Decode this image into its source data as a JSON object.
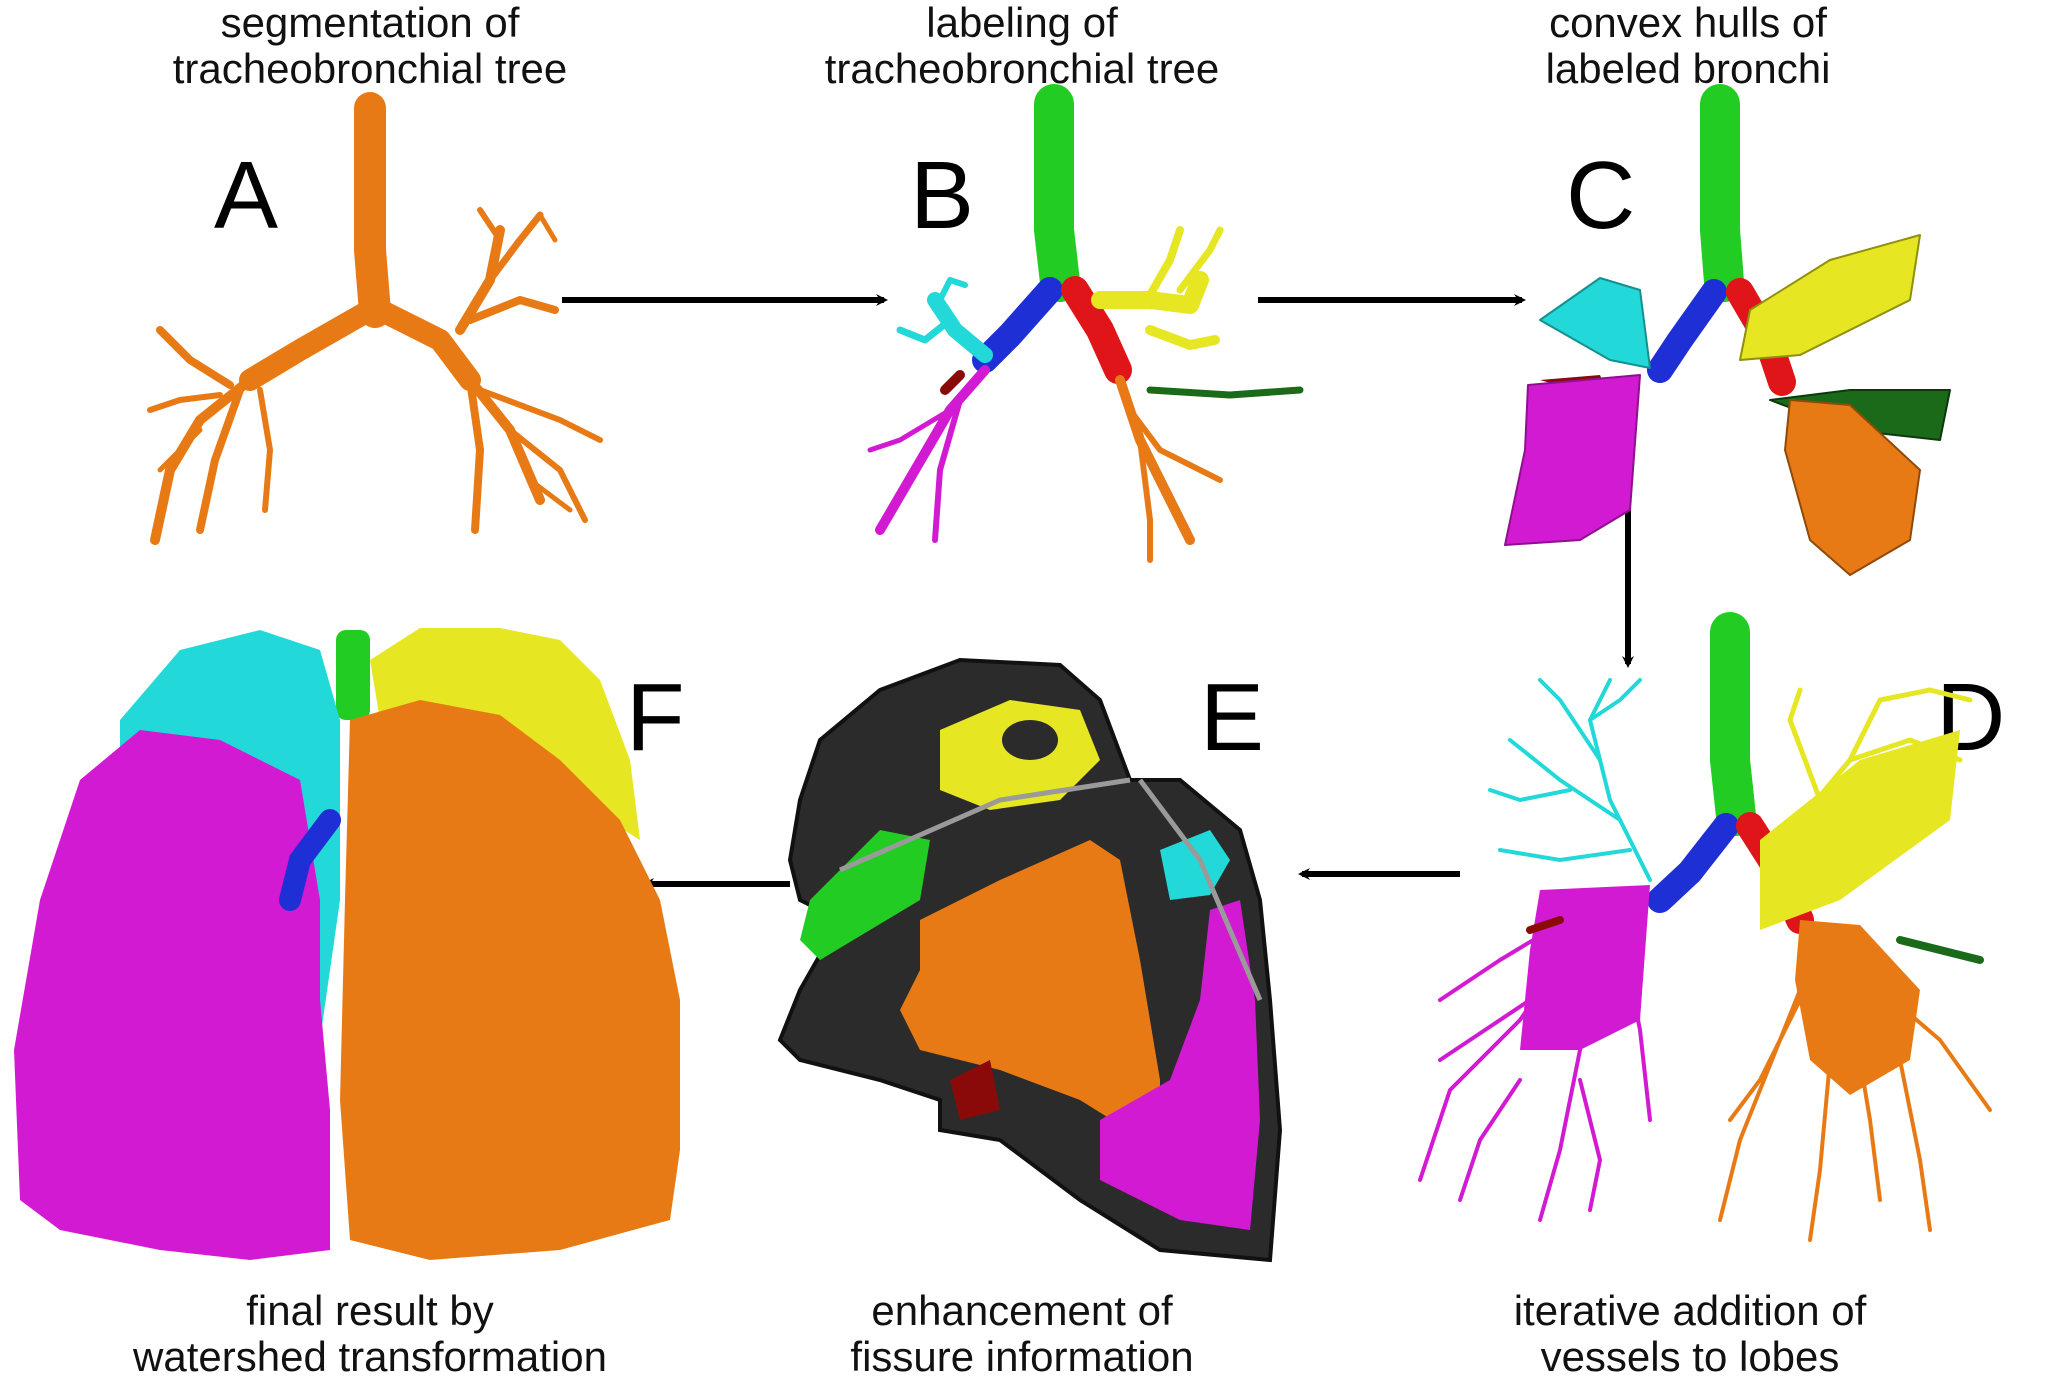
{
  "panels": [
    {
      "letter": "A",
      "caption_line1": "segmentation of",
      "caption_line2": "tracheobronchial tree"
    },
    {
      "letter": "B",
      "caption_line1": "labeling of",
      "caption_line2": "tracheobronchial tree"
    },
    {
      "letter": "C",
      "caption_line1": "convex hulls of",
      "caption_line2": "labeled bronchi"
    },
    {
      "letter": "D",
      "caption_line1": "iterative addition of",
      "caption_line2": "vessels to lobes"
    },
    {
      "letter": "E",
      "caption_line1": "enhancement of",
      "caption_line2": "fissure information"
    },
    {
      "letter": "F",
      "caption_line1": "final result by",
      "caption_line2": "watershed transformation"
    }
  ],
  "colors": {
    "trachea": "#22cc22",
    "main_bronchus_right": "#1f2fd6",
    "main_bronchus_left": "#e0151a",
    "upper_right": "#22d8d8",
    "middle_right": "#8a0a0a",
    "lower_right": "#d21ad2",
    "upper_left": "#e6e622",
    "lower_left": "#e87a16",
    "lingula": "#1a6a1a",
    "background_tissue": "#2b2b2b"
  }
}
